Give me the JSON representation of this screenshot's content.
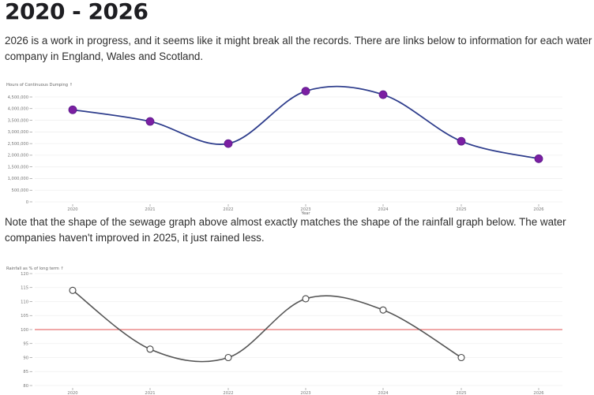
{
  "page": {
    "title": "2020 - 2026",
    "intro": "2026 is a work in progress, and it seems like it might break all the records. There are links below to information for each water company in England, Wales and Scotland.",
    "note": "Note that the shape of the sewage graph above almost exactly matches the shape of the rainfall graph below. The water companies haven't improved in 2025, it just rained less."
  },
  "colors": {
    "sewage_line": "#2e3d8c",
    "sewage_marker": "#7b1fa2",
    "rain_line": "#555555",
    "reference_line": "#e05050",
    "grid": "#eeeeee"
  },
  "chart_data": [
    {
      "type": "line",
      "title": "",
      "ylabel": "Hours of Continuous Dumping ↑",
      "xlabel": "Year",
      "categories": [
        "2020",
        "2021",
        "2022",
        "2023",
        "2024",
        "2025",
        "2026"
      ],
      "series": [
        {
          "name": "Hours of Continuous Dumping",
          "values": [
            3950000,
            3450000,
            2500000,
            4750000,
            4600000,
            2600000,
            1850000
          ]
        }
      ],
      "yticks": [
        "0",
        "500,000",
        "1,000,000",
        "1,500,000",
        "2,000,000",
        "2,500,000",
        "3,000,000",
        "3,500,000",
        "4,000,000",
        "4,500,000"
      ],
      "ylim": [
        0,
        4500000
      ],
      "grid": true,
      "curve": "smooth",
      "markers": "filled-circle"
    },
    {
      "type": "line",
      "title": "",
      "ylabel": "Rainfall as % of long term ↑",
      "xlabel": "",
      "categories": [
        "2020",
        "2021",
        "2022",
        "2023",
        "2024",
        "2025",
        "2026"
      ],
      "series": [
        {
          "name": "Rainfall as % of long term",
          "values": [
            114,
            93,
            90,
            111,
            107,
            90,
            null
          ]
        }
      ],
      "reference_line": {
        "y": 100,
        "color": "#e05050"
      },
      "yticks": [
        "80",
        "85",
        "90",
        "95",
        "100",
        "105",
        "110",
        "115",
        "120"
      ],
      "ylim": [
        80,
        120
      ],
      "grid": true,
      "curve": "smooth",
      "markers": "hollow-circle"
    }
  ]
}
